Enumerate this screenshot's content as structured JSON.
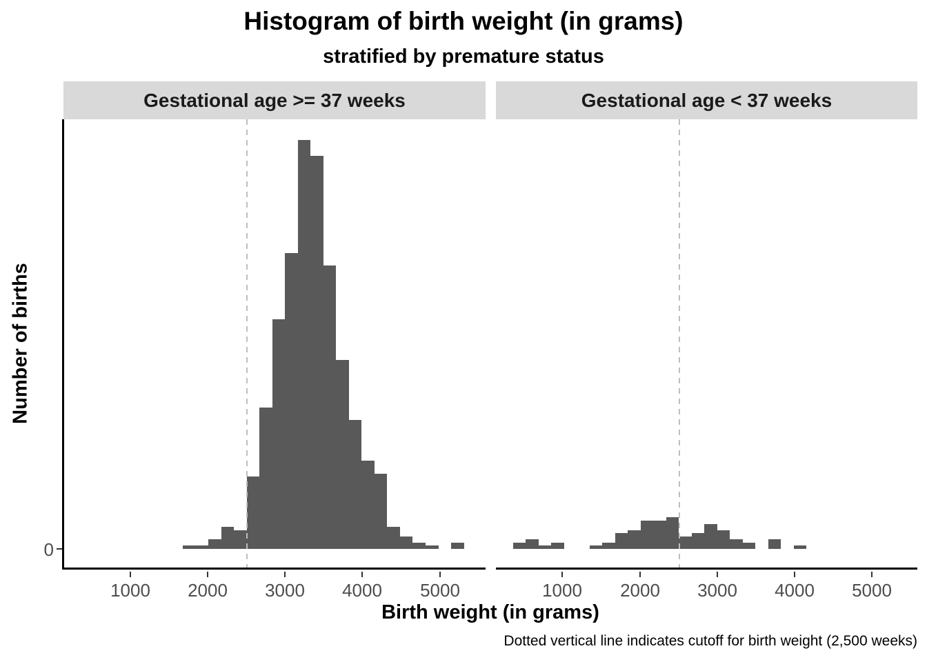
{
  "title": "Histogram of birth weight (in grams)",
  "subtitle": "stratified by premature status",
  "caption": "Dotted vertical line indicates cutoff for birth weight (2,500 weeks)",
  "y_axis": {
    "label": "Number of births",
    "zero_label": "0"
  },
  "x_axis": {
    "label": "Birth weight (in grams)",
    "ticks": [
      1000,
      2000,
      3000,
      4000,
      5000
    ]
  },
  "colors": {
    "bar": "#595959",
    "strip_background": "#D9D9D9",
    "axis_text": "#4D4D4D",
    "dashed_cutoff": "#BEBEBE",
    "axis_line": "#000000"
  },
  "chart_data": {
    "type": "bar",
    "subtype": "histogram",
    "title": "Histogram of birth weight (in grams)",
    "subtitle": "stratified by premature status",
    "xlabel": "Birth weight (in grams)",
    "ylabel": "Number of births",
    "x_domain": [
      140,
      5590
    ],
    "ylim": [
      0,
      130
    ],
    "grid": "off",
    "legend": "none",
    "bin_start": 360,
    "bin_width": 165,
    "cutoff_value": 2500,
    "cutoff_note": "dashed vertical line at 2,500 g in each facet",
    "facets": [
      {
        "label": "Gestational age >= 37 weeks",
        "counts": [
          0,
          0,
          0,
          0,
          0,
          0,
          0,
          0,
          1,
          1,
          3,
          7,
          6,
          23,
          45,
          73,
          94,
          130,
          125,
          90,
          60,
          41,
          28,
          24,
          7,
          4,
          2,
          1,
          0,
          2
        ]
      },
      {
        "label": "Gestational age < 37 weeks",
        "counts": [
          2,
          3,
          1,
          2,
          0,
          0,
          1,
          2,
          5,
          6,
          9,
          9,
          10,
          4,
          5,
          8,
          6,
          3,
          2,
          0,
          3,
          0,
          1,
          0,
          0,
          0,
          0,
          0,
          0,
          0
        ]
      }
    ]
  }
}
